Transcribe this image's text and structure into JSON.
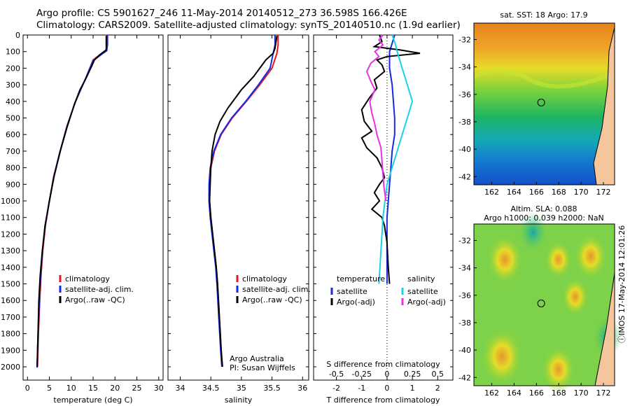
{
  "header": {
    "line1": "Argo profile: CS 5901627_246 11-May-2014 20140512_273 36.598S 166.426E",
    "line2": "Climatology: CARS2009. Satellite-adjusted climatology: synTS_20140510.nc (1.9d earlier)"
  },
  "colors": {
    "climatology": "#e8141e",
    "satellite": "#1428e6",
    "argo": "#000000",
    "satellite_s": "#19d2e6",
    "argo_s": "#e632e6"
  },
  "depth_axis": {
    "ticks": [
      0,
      100,
      200,
      300,
      400,
      500,
      600,
      700,
      800,
      900,
      1000,
      1100,
      1200,
      1300,
      1400,
      1500,
      1600,
      1700,
      1800,
      1900,
      2000
    ],
    "ylim": [
      0,
      2080
    ]
  },
  "chart_data": [
    {
      "type": "line",
      "panel": "temperature",
      "xlabel": "temperature (deg C)",
      "xticks": [
        0,
        5,
        10,
        15,
        20,
        25,
        30
      ],
      "xlim": [
        -1,
        31
      ],
      "legend": [
        "climatology",
        "satellite-adj. clim.",
        "Argo(..raw -QC)"
      ],
      "series": [
        {
          "name": "climatology",
          "color_key": "climatology",
          "points": [
            [
              18.1,
              0
            ],
            [
              18.1,
              60
            ],
            [
              18.0,
              90
            ],
            [
              17.0,
              110
            ],
            [
              15.0,
              150
            ],
            [
              13.5,
              250
            ],
            [
              11.0,
              400
            ],
            [
              9.0,
              550
            ],
            [
              7.5,
              700
            ],
            [
              6.0,
              850
            ],
            [
              5.0,
              1000
            ],
            [
              4.1,
              1150
            ],
            [
              3.5,
              1300
            ],
            [
              3.1,
              1450
            ],
            [
              2.8,
              1600
            ],
            [
              2.5,
              1800
            ],
            [
              2.3,
              2000
            ]
          ]
        },
        {
          "name": "satellite-adj. clim.",
          "color_key": "satellite",
          "points": [
            [
              18.3,
              0
            ],
            [
              18.3,
              60
            ],
            [
              18.1,
              95
            ],
            [
              17.0,
              115
            ],
            [
              15.0,
              155
            ],
            [
              13.4,
              255
            ],
            [
              10.9,
              405
            ],
            [
              9.0,
              555
            ],
            [
              7.4,
              705
            ],
            [
              6.0,
              855
            ],
            [
              5.0,
              1005
            ],
            [
              4.0,
              1155
            ],
            [
              3.4,
              1305
            ],
            [
              3.0,
              1455
            ],
            [
              2.7,
              1605
            ],
            [
              2.4,
              1805
            ],
            [
              2.2,
              2005
            ]
          ]
        },
        {
          "name": "Argo(..raw -QC)",
          "color_key": "argo",
          "points": [
            [
              18.0,
              5
            ],
            [
              18.0,
              90
            ],
            [
              16.5,
              120
            ],
            [
              15.3,
              150
            ],
            [
              14.8,
              180
            ],
            [
              13.2,
              270
            ],
            [
              12.0,
              330
            ],
            [
              10.7,
              420
            ],
            [
              9.0,
              560
            ],
            [
              7.5,
              700
            ],
            [
              6.1,
              850
            ],
            [
              5.0,
              1000
            ],
            [
              4.0,
              1150
            ],
            [
              3.4,
              1300
            ],
            [
              2.9,
              1450
            ],
            [
              2.6,
              1600
            ],
            [
              2.4,
              1800
            ],
            [
              2.2,
              2000
            ]
          ]
        }
      ]
    },
    {
      "type": "line",
      "panel": "salinity",
      "xlabel": "salinity",
      "xticks": [
        34,
        34.5,
        35,
        35.5,
        36
      ],
      "xlim": [
        33.8,
        36.1
      ],
      "legend": [
        "climatology",
        "satellite-adj. clim.",
        "Argo(..raw -QC)"
      ],
      "annotation": [
        "Argo Australia",
        "PI: Susan Wijffels"
      ],
      "series": [
        {
          "name": "climatology",
          "color_key": "climatology",
          "points": [
            [
              35.6,
              0
            ],
            [
              35.6,
              60
            ],
            [
              35.58,
              110
            ],
            [
              35.5,
              200
            ],
            [
              35.3,
              300
            ],
            [
              35.08,
              400
            ],
            [
              34.85,
              500
            ],
            [
              34.67,
              600
            ],
            [
              34.56,
              700
            ],
            [
              34.5,
              800
            ],
            [
              34.48,
              900
            ],
            [
              34.48,
              1000
            ],
            [
              34.5,
              1100
            ],
            [
              34.53,
              1200
            ],
            [
              34.56,
              1300
            ],
            [
              34.59,
              1400
            ],
            [
              34.61,
              1500
            ],
            [
              34.64,
              1700
            ],
            [
              34.67,
              1900
            ],
            [
              34.69,
              2000
            ]
          ]
        },
        {
          "name": "satellite-adj. clim.",
          "color_key": "satellite",
          "points": [
            [
              35.55,
              0
            ],
            [
              35.55,
              60
            ],
            [
              35.52,
              110
            ],
            [
              35.47,
              200
            ],
            [
              35.28,
              300
            ],
            [
              35.07,
              400
            ],
            [
              34.84,
              500
            ],
            [
              34.66,
              600
            ],
            [
              34.55,
              700
            ],
            [
              34.49,
              800
            ],
            [
              34.47,
              900
            ],
            [
              34.47,
              1000
            ],
            [
              34.49,
              1100
            ],
            [
              34.52,
              1200
            ],
            [
              34.55,
              1300
            ],
            [
              34.58,
              1400
            ],
            [
              34.6,
              1500
            ],
            [
              34.63,
              1700
            ],
            [
              34.66,
              1900
            ],
            [
              34.68,
              2000
            ]
          ]
        },
        {
          "name": "Argo(..raw -QC)",
          "color_key": "argo",
          "points": [
            [
              35.58,
              5
            ],
            [
              35.55,
              80
            ],
            [
              35.52,
              110
            ],
            [
              35.4,
              150
            ],
            [
              35.3,
              200
            ],
            [
              35.2,
              250
            ],
            [
              35.0,
              330
            ],
            [
              34.9,
              380
            ],
            [
              34.78,
              440
            ],
            [
              34.65,
              520
            ],
            [
              34.57,
              600
            ],
            [
              34.52,
              700
            ],
            [
              34.5,
              800
            ],
            [
              34.49,
              900
            ],
            [
              34.48,
              1000
            ],
            [
              34.5,
              1100
            ],
            [
              34.53,
              1200
            ],
            [
              34.56,
              1300
            ],
            [
              34.59,
              1400
            ],
            [
              34.61,
              1500
            ],
            [
              34.64,
              1700
            ],
            [
              34.67,
              1900
            ],
            [
              34.69,
              2000
            ]
          ]
        }
      ]
    },
    {
      "type": "line",
      "panel": "difference",
      "xlabel_top": "S difference from climatology",
      "xlabel": "T difference from climatology",
      "t_ticks": [
        -2,
        -1,
        0,
        1,
        2
      ],
      "s_ticks": [
        "-0.5",
        "-0.25",
        "0",
        "0.25",
        "0.5"
      ],
      "s_tick_values": [
        -0.5,
        -0.25,
        0,
        0.25,
        0.5
      ],
      "xlim": [
        -2.9,
        2.6
      ],
      "legend_left_title": "temperature",
      "legend_right_title": "salinity",
      "legend_left": [
        "satellite",
        "Argo(-adj)"
      ],
      "legend_right": [
        "satellite",
        "Argo(-adj)"
      ],
      "series": [
        {
          "name": "T satellite",
          "color_key": "satellite",
          "points": [
            [
              0.3,
              0
            ],
            [
              0.2,
              50
            ],
            [
              0.1,
              100
            ],
            [
              0.1,
              200
            ],
            [
              0.2,
              300
            ],
            [
              0.25,
              400
            ],
            [
              0.3,
              500
            ],
            [
              0.3,
              600
            ],
            [
              0.2,
              700
            ],
            [
              0.15,
              800
            ],
            [
              0.1,
              900
            ],
            [
              0.05,
              1000
            ],
            [
              0.0,
              1100
            ],
            [
              0.0,
              1300
            ],
            [
              0.0,
              1500
            ]
          ]
        },
        {
          "name": "T Argo(-adj)",
          "color_key": "argo",
          "points": [
            [
              -0.3,
              0
            ],
            [
              -0.2,
              40
            ],
            [
              -0.5,
              70
            ],
            [
              0.5,
              90
            ],
            [
              1.3,
              110
            ],
            [
              0.0,
              130
            ],
            [
              -0.4,
              150
            ],
            [
              -0.2,
              180
            ],
            [
              -0.1,
              220
            ],
            [
              -0.5,
              270
            ],
            [
              -0.4,
              320
            ],
            [
              -0.7,
              380
            ],
            [
              -1.0,
              450
            ],
            [
              -0.9,
              520
            ],
            [
              -0.6,
              580
            ],
            [
              -1.0,
              620
            ],
            [
              -0.8,
              680
            ],
            [
              -0.4,
              740
            ],
            [
              -0.2,
              800
            ],
            [
              -0.1,
              860
            ],
            [
              -0.3,
              900
            ],
            [
              -0.5,
              950
            ],
            [
              -0.3,
              1000
            ],
            [
              -0.6,
              1050
            ],
            [
              -0.2,
              1100
            ],
            [
              -0.1,
              1150
            ],
            [
              0.0,
              1250
            ],
            [
              0.05,
              1400
            ],
            [
              0.1,
              1500
            ]
          ]
        },
        {
          "name": "S satellite",
          "color_key": "satellite_s",
          "points": [
            [
              0.05,
              0
            ],
            [
              0.08,
              50
            ],
            [
              0.1,
              100
            ],
            [
              0.15,
              200
            ],
            [
              0.2,
              300
            ],
            [
              0.25,
              400
            ],
            [
              0.2,
              500
            ],
            [
              0.15,
              600
            ],
            [
              0.1,
              700
            ],
            [
              0.05,
              800
            ],
            [
              0.0,
              900
            ],
            [
              -0.02,
              1000
            ],
            [
              -0.04,
              1100
            ],
            [
              -0.05,
              1200
            ],
            [
              -0.06,
              1300
            ],
            [
              -0.07,
              1400
            ],
            [
              -0.08,
              1500
            ]
          ]
        },
        {
          "name": "S Argo(-adj)",
          "color_key": "argo_s",
          "points": [
            [
              -0.04,
              0
            ],
            [
              -0.08,
              30
            ],
            [
              -0.04,
              60
            ],
            [
              -0.12,
              100
            ],
            [
              -0.08,
              130
            ],
            [
              -0.16,
              170
            ],
            [
              -0.2,
              220
            ],
            [
              -0.16,
              280
            ],
            [
              -0.12,
              330
            ],
            [
              -0.17,
              400
            ],
            [
              -0.15,
              470
            ],
            [
              -0.12,
              540
            ],
            [
              -0.1,
              600
            ],
            [
              -0.06,
              680
            ],
            [
              -0.05,
              760
            ],
            [
              -0.04,
              840
            ],
            [
              -0.03,
              920
            ],
            [
              -0.01,
              1000
            ]
          ]
        }
      ]
    },
    {
      "type": "heatmap",
      "panel": "sst_map",
      "title": "sat. SST: 18 Argo: 17.9",
      "xticks": [
        162,
        164,
        166,
        168,
        170,
        172
      ],
      "yticks": [
        -32,
        -34,
        -36,
        -38,
        -40,
        -42
      ],
      "xlim": [
        160.4,
        173.0
      ],
      "ylim": [
        -42.6,
        -30.8
      ],
      "marker": {
        "lon": 166.426,
        "lat": -36.598
      }
    },
    {
      "type": "heatmap",
      "panel": "sla_map",
      "title_line1": "Altim. SLA: 0.088",
      "title_line2": "Argo h1000: 0.039 h2000: NaN",
      "xticks": [
        162,
        164,
        166,
        168,
        170,
        172
      ],
      "yticks": [
        -32,
        -34,
        -36,
        -38,
        -40,
        -42
      ],
      "xlim": [
        160.4,
        173.0
      ],
      "ylim": [
        -42.6,
        -30.8
      ],
      "marker": {
        "lon": 166.426,
        "lat": -36.598
      }
    }
  ],
  "side_stamp": "ⓘIMOS 17-May-2014 12:01:26"
}
